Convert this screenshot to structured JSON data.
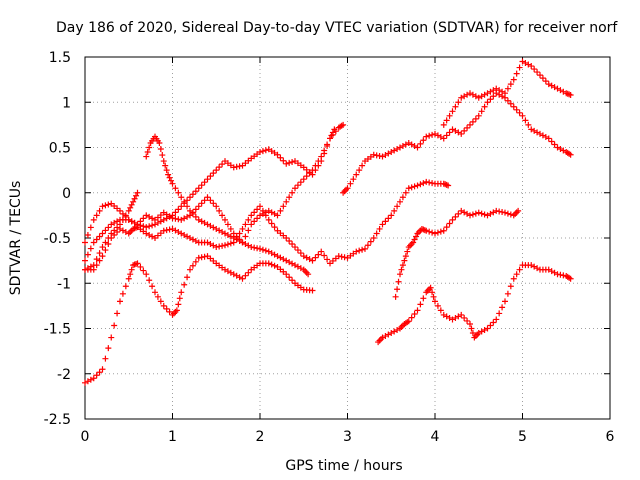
{
  "chart_data": {
    "type": "scatter",
    "title": "Day 186 of 2020, Sidereal Day-to-day VTEC variation (SDTVAR) for receiver norf",
    "xlabel": "GPS time / hours",
    "ylabel": "SDTVAR / TECUs",
    "xlim": [
      0,
      6
    ],
    "ylim": [
      -2.5,
      1.5
    ],
    "xticks": [
      "0",
      "1",
      "2",
      "3",
      "4",
      "5",
      "6"
    ],
    "yticks": [
      "-2.5",
      "-2",
      "-1.5",
      "-1",
      "-0.5",
      "0",
      "0.5",
      "1",
      "1.5"
    ],
    "grid": true,
    "marker": "plus",
    "color": "#ff0000",
    "series": [
      {
        "x": [
          0.0,
          0.1,
          0.2,
          0.3,
          0.4,
          0.5,
          0.55,
          0.6,
          0.7,
          0.8,
          0.9,
          1.0,
          1.05,
          1.1,
          1.2,
          1.3,
          1.4,
          1.5,
          1.6,
          1.7,
          1.8,
          1.9,
          2.0,
          2.1,
          2.2,
          2.3,
          2.4,
          2.5,
          2.6
        ],
        "y": [
          -2.1,
          -2.05,
          -1.95,
          -1.6,
          -1.2,
          -0.95,
          -0.8,
          -0.78,
          -0.9,
          -1.1,
          -1.25,
          -1.35,
          -1.3,
          -1.1,
          -0.85,
          -0.72,
          -0.7,
          -0.78,
          -0.85,
          -0.9,
          -0.95,
          -0.85,
          -0.78,
          -0.78,
          -0.82,
          -0.9,
          -1.0,
          -1.07,
          -1.08
        ]
      },
      {
        "x": [
          0.0,
          0.1,
          0.2,
          0.3,
          0.4,
          0.5,
          0.6,
          0.7,
          0.8,
          0.9,
          1.0,
          1.1,
          1.2,
          1.3,
          1.4,
          1.5,
          1.6,
          1.7,
          1.8,
          1.9,
          2.0,
          2.1,
          2.2,
          2.3,
          2.4,
          2.5,
          2.6,
          2.7,
          2.8,
          2.9,
          2.95
        ],
        "y": [
          -0.55,
          -0.3,
          -0.15,
          -0.12,
          -0.2,
          -0.3,
          -0.35,
          -0.38,
          -0.35,
          -0.3,
          -0.25,
          -0.15,
          -0.05,
          0.05,
          0.15,
          0.25,
          0.35,
          0.28,
          0.3,
          0.38,
          0.45,
          0.48,
          0.42,
          0.32,
          0.35,
          0.28,
          0.2,
          0.35,
          0.6,
          0.72,
          0.75
        ]
      },
      {
        "x": [
          0.0,
          0.1,
          0.2,
          0.3,
          0.4,
          0.5,
          0.55,
          0.6,
          0.7,
          0.8,
          0.9,
          1.0,
          1.1,
          1.2,
          1.3,
          1.4,
          1.5,
          1.6,
          1.7,
          1.8,
          1.9,
          2.0,
          2.1,
          2.2,
          2.3,
          2.4,
          2.5,
          2.6,
          2.7,
          2.8,
          2.9,
          3.0,
          3.1,
          3.2,
          3.3,
          3.4,
          3.5,
          3.6,
          3.7,
          3.8,
          3.9,
          4.0,
          4.1,
          4.15
        ],
        "y": [
          -0.85,
          -0.85,
          -0.7,
          -0.5,
          -0.4,
          -0.45,
          -0.4,
          -0.38,
          -0.45,
          -0.5,
          -0.42,
          -0.4,
          -0.45,
          -0.5,
          -0.55,
          -0.55,
          -0.6,
          -0.58,
          -0.55,
          -0.4,
          -0.25,
          -0.15,
          -0.3,
          -0.42,
          -0.5,
          -0.6,
          -0.7,
          -0.75,
          -0.65,
          -0.78,
          -0.7,
          -0.72,
          -0.65,
          -0.62,
          -0.5,
          -0.35,
          -0.25,
          -0.1,
          0.05,
          0.08,
          0.12,
          0.1,
          0.1,
          0.08
        ]
      },
      {
        "x": [
          0.0,
          0.1,
          0.2,
          0.3,
          0.4,
          0.5,
          0.6,
          0.7,
          0.8,
          0.9,
          1.0,
          1.1,
          1.2,
          1.3,
          1.4,
          1.5,
          1.6,
          1.7,
          1.8,
          1.9,
          2.0,
          2.1,
          2.2,
          2.3,
          2.4,
          2.5,
          2.6,
          2.7,
          2.8,
          2.85
        ],
        "y": [
          -0.75,
          -0.55,
          -0.45,
          -0.35,
          -0.3,
          -0.3,
          -0.35,
          -0.25,
          -0.3,
          -0.22,
          -0.28,
          -0.3,
          -0.25,
          -0.15,
          -0.05,
          -0.15,
          -0.3,
          -0.45,
          -0.55,
          -0.35,
          -0.25,
          -0.2,
          -0.25,
          -0.1,
          0.05,
          0.15,
          0.25,
          0.4,
          0.6,
          0.7
        ]
      },
      {
        "x": [
          0.0,
          0.1,
          0.2,
          0.3,
          0.4,
          0.5,
          0.55,
          0.6
        ],
        "y": [
          -0.85,
          -0.8,
          -0.6,
          -0.45,
          -0.35,
          -0.2,
          -0.1,
          0.0
        ]
      },
      {
        "x": [
          0.7,
          0.75,
          0.8,
          0.85,
          0.9,
          0.95,
          1.0,
          1.1,
          1.2,
          1.3,
          1.4,
          1.5,
          1.6,
          1.7,
          1.8,
          1.9,
          2.0,
          2.1,
          2.2,
          2.3,
          2.4,
          2.5,
          2.55
        ],
        "y": [
          0.4,
          0.55,
          0.62,
          0.55,
          0.35,
          0.2,
          0.1,
          -0.05,
          -0.2,
          -0.3,
          -0.35,
          -0.4,
          -0.45,
          -0.5,
          -0.55,
          -0.6,
          -0.62,
          -0.65,
          -0.7,
          -0.75,
          -0.8,
          -0.85,
          -0.9
        ]
      },
      {
        "x": [
          2.95,
          3.0,
          3.1,
          3.2,
          3.3,
          3.4,
          3.5,
          3.6,
          3.7,
          3.8,
          3.9,
          4.0,
          4.1,
          4.2,
          4.3,
          4.4,
          4.5,
          4.6,
          4.7,
          4.8,
          4.9,
          5.0,
          5.1,
          5.2,
          5.3,
          5.4,
          5.5,
          5.55
        ],
        "y": [
          0.0,
          0.05,
          0.2,
          0.35,
          0.42,
          0.4,
          0.45,
          0.5,
          0.55,
          0.5,
          0.62,
          0.65,
          0.6,
          0.7,
          0.65,
          0.75,
          0.85,
          1.0,
          1.1,
          1.05,
          0.95,
          0.85,
          0.7,
          0.65,
          0.6,
          0.5,
          0.45,
          0.42
        ]
      },
      {
        "x": [
          4.1,
          4.2,
          4.3,
          4.4,
          4.5,
          4.6,
          4.7,
          4.8,
          4.9,
          5.0,
          5.1,
          5.2,
          5.3,
          5.4,
          5.5,
          5.55
        ],
        "y": [
          0.75,
          0.9,
          1.05,
          1.1,
          1.05,
          1.1,
          1.15,
          1.1,
          1.25,
          1.45,
          1.4,
          1.3,
          1.2,
          1.15,
          1.1,
          1.08
        ]
      },
      {
        "x": [
          3.55,
          3.6,
          3.65,
          3.7,
          3.75,
          3.8,
          3.85,
          3.9,
          4.0,
          4.1,
          4.2,
          4.3,
          4.4,
          4.5,
          4.6,
          4.7,
          4.8,
          4.9,
          4.95
        ],
        "y": [
          -1.15,
          -0.9,
          -0.75,
          -0.6,
          -0.55,
          -0.45,
          -0.4,
          -0.42,
          -0.45,
          -0.42,
          -0.3,
          -0.2,
          -0.25,
          -0.22,
          -0.25,
          -0.2,
          -0.22,
          -0.25,
          -0.2
        ]
      },
      {
        "x": [
          3.35,
          3.4,
          3.5,
          3.6,
          3.65,
          3.7,
          3.8,
          3.9,
          3.95,
          4.0,
          4.1,
          4.2,
          4.3,
          4.4,
          4.45,
          4.5,
          4.6,
          4.7,
          4.8,
          4.9,
          5.0,
          5.1,
          5.2,
          5.3,
          5.4,
          5.5,
          5.55
        ],
        "y": [
          -1.65,
          -1.6,
          -1.55,
          -1.5,
          -1.45,
          -1.42,
          -1.3,
          -1.1,
          -1.05,
          -1.2,
          -1.35,
          -1.4,
          -1.35,
          -1.45,
          -1.6,
          -1.55,
          -1.5,
          -1.4,
          -1.2,
          -0.95,
          -0.8,
          -0.8,
          -0.85,
          -0.85,
          -0.9,
          -0.92,
          -0.95
        ]
      }
    ]
  }
}
